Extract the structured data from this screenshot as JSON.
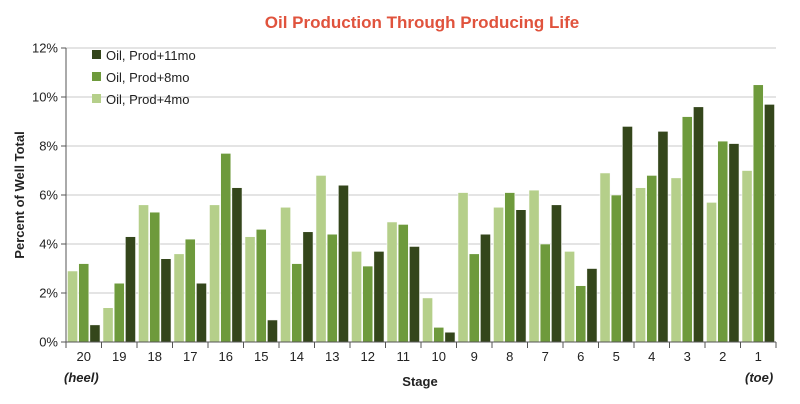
{
  "chart_data": {
    "type": "bar",
    "title": "Oil Production Through Producing Life",
    "xlabel": "Stage",
    "ylabel": "Percent of Well Total",
    "ylim": [
      0,
      12
    ],
    "yticks": [
      "0%",
      "2%",
      "4%",
      "6%",
      "8%",
      "10%",
      "12%"
    ],
    "ytick_values": [
      0,
      2,
      4,
      6,
      8,
      10,
      12
    ],
    "grid": true,
    "legend_position": "top-left",
    "categories": [
      "20",
      "19",
      "18",
      "17",
      "16",
      "15",
      "14",
      "13",
      "12",
      "11",
      "10",
      "9",
      "8",
      "7",
      "6",
      "5",
      "4",
      "3",
      "2",
      "1"
    ],
    "series": [
      {
        "name": "Oil, Prod+4mo",
        "color": "#b5cf8a",
        "values": [
          2.9,
          1.4,
          5.6,
          3.6,
          5.6,
          4.3,
          5.5,
          6.8,
          3.7,
          4.9,
          1.8,
          6.1,
          5.5,
          6.2,
          3.7,
          6.9,
          6.3,
          6.7,
          5.7,
          7.0
        ]
      },
      {
        "name": "Oil, Prod+8mo",
        "color": "#6e9a3c",
        "values": [
          3.2,
          2.4,
          5.3,
          4.2,
          7.7,
          4.6,
          3.2,
          4.4,
          3.1,
          4.8,
          0.6,
          3.6,
          6.1,
          4.0,
          2.3,
          6.0,
          6.8,
          9.2,
          8.2,
          10.5
        ]
      },
      {
        "name": "Oil, Prod+11mo",
        "color": "#34461b",
        "values": [
          0.7,
          4.3,
          3.4,
          2.4,
          6.3,
          0.9,
          4.5,
          6.4,
          3.7,
          3.9,
          0.4,
          4.4,
          5.4,
          5.6,
          3.0,
          8.8,
          8.6,
          9.6,
          8.1,
          9.7
        ]
      }
    ],
    "legend_order": [
      2,
      1,
      0
    ],
    "annotations": {
      "left_end": "(heel)",
      "right_end": "(toe)"
    },
    "title_color": "#e0533d",
    "grid_color": "#c8c8c8",
    "axis_color": "#555555"
  }
}
